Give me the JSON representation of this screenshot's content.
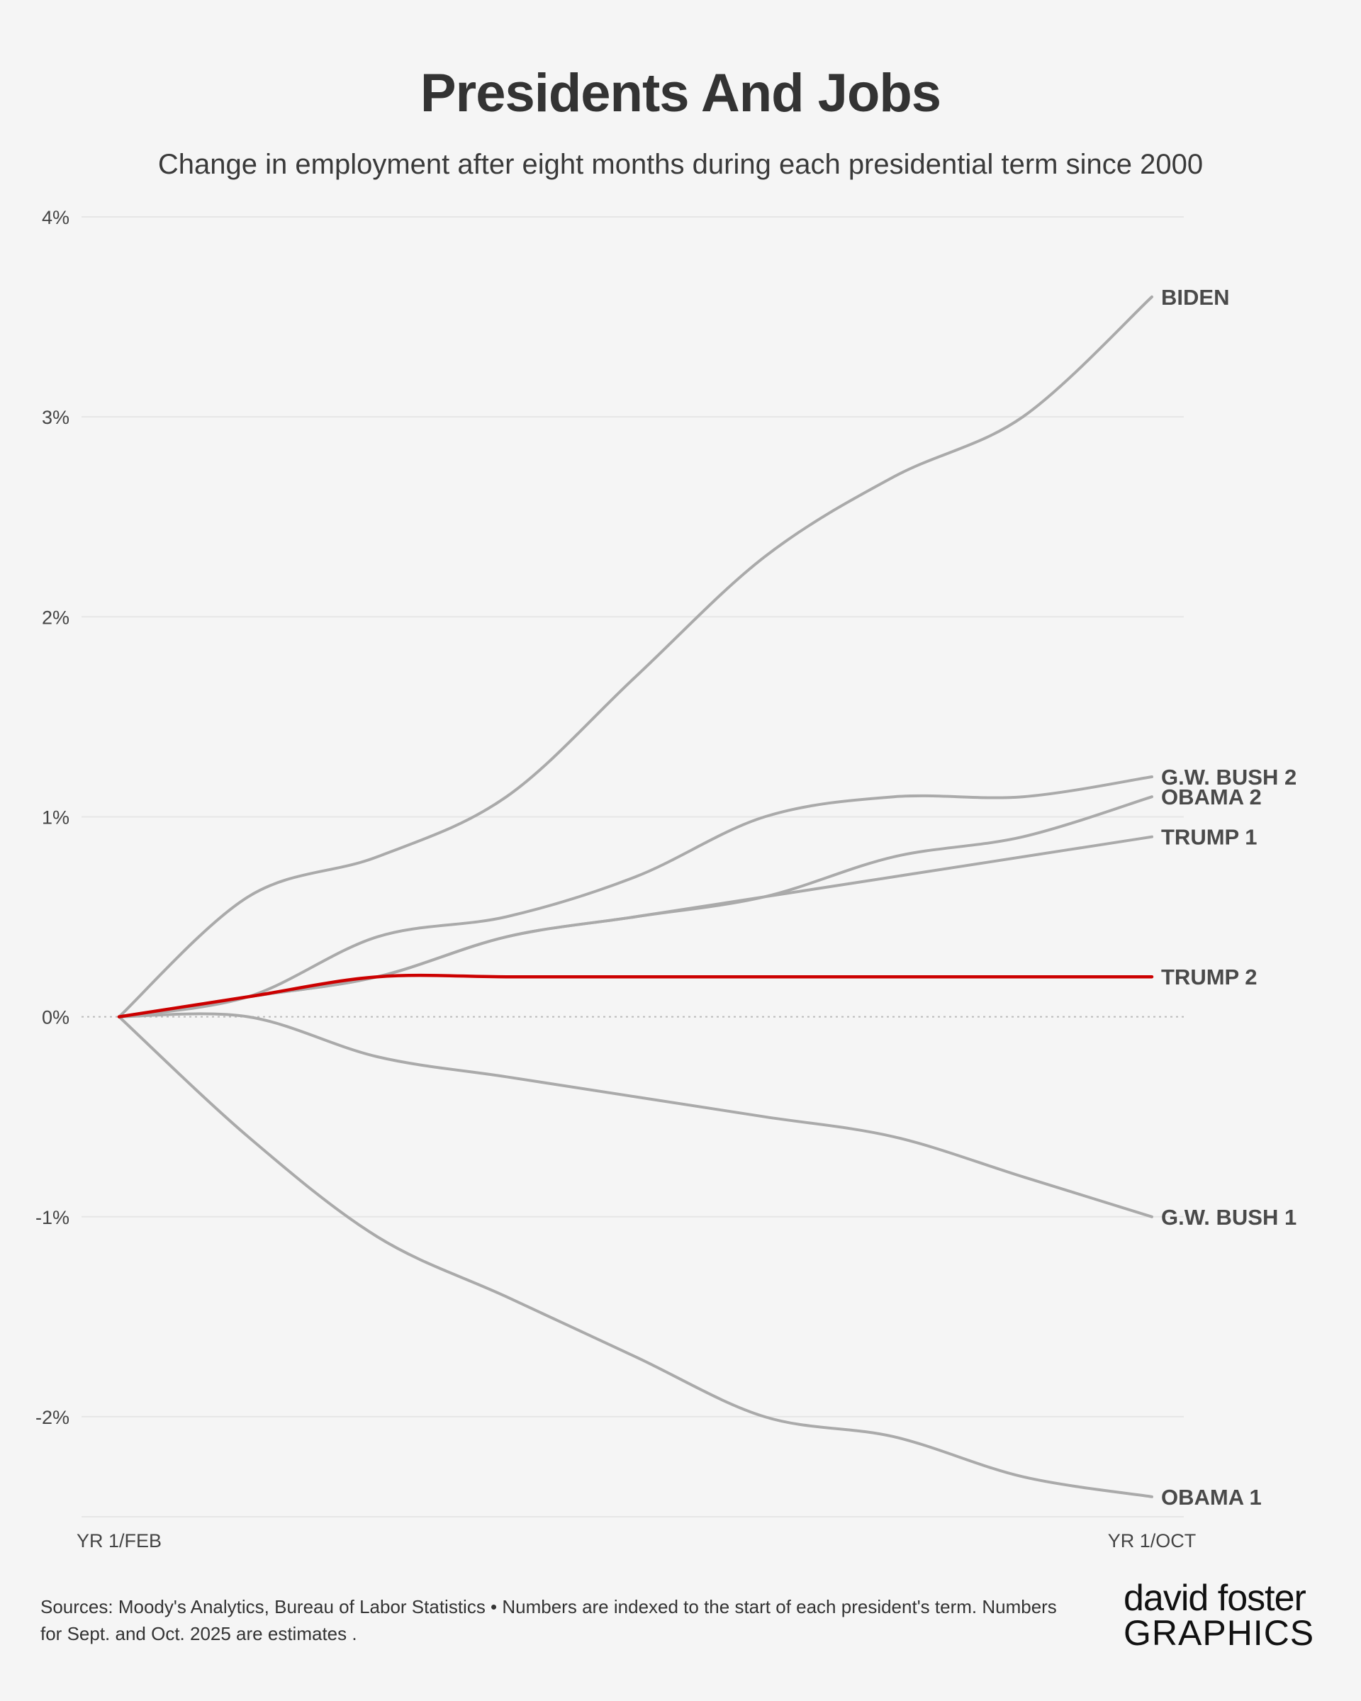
{
  "chart_data": {
    "type": "line",
    "title": "Presidents And Jobs",
    "subtitle": "Change in employment after eight months during each presidential term since 2000",
    "x": [
      0,
      1,
      2,
      3,
      4,
      5,
      6,
      7,
      8
    ],
    "x_tick_labels": [
      "YR 1/FEB",
      "YR 1/OCT"
    ],
    "y_tick_labels": [
      "4%",
      "3%",
      "2%",
      "1%",
      "0%",
      "-1%",
      "-2%"
    ],
    "ylim": [
      -2.5,
      4
    ],
    "y_ticks": [
      4,
      3,
      2,
      1,
      0,
      -1,
      -2
    ],
    "grid": true,
    "series": [
      {
        "name": "BIDEN",
        "values": [
          0,
          0.6,
          0.8,
          1.1,
          1.7,
          2.3,
          2.7,
          3.0,
          3.6
        ],
        "color": "#aaaaaa"
      },
      {
        "name": "G.W. BUSH 2",
        "values": [
          0,
          0.1,
          0.4,
          0.5,
          0.7,
          1.0,
          1.1,
          1.1,
          1.2
        ],
        "color": "#aaaaaa"
      },
      {
        "name": "OBAMA 2",
        "values": [
          0,
          0.1,
          0.2,
          0.4,
          0.5,
          0.6,
          0.8,
          0.9,
          1.1
        ],
        "color": "#aaaaaa"
      },
      {
        "name": "TRUMP 1",
        "values": [
          0,
          0.1,
          0.2,
          0.4,
          0.5,
          0.6,
          0.7,
          0.8,
          0.9
        ],
        "color": "#aaaaaa"
      },
      {
        "name": "G.W. BUSH 1",
        "values": [
          0,
          0,
          -0.2,
          -0.3,
          -0.4,
          -0.5,
          -0.6,
          -0.8,
          -1.0
        ],
        "color": "#aaaaaa"
      },
      {
        "name": "OBAMA 1",
        "values": [
          0,
          -0.6,
          -1.1,
          -1.4,
          -1.7,
          -2.0,
          -2.1,
          -2.3,
          -2.4
        ],
        "color": "#aaaaaa"
      },
      {
        "name": "TRUMP 2",
        "values": [
          0,
          0.1,
          0.2,
          0.2,
          0.2,
          0.2,
          0.2,
          0.2,
          0.2
        ],
        "color": "#cc0000"
      }
    ]
  },
  "footer": {
    "sources": "Sources: Moody's Analytics, Bureau of Labor Statistics • Numbers are indexed to the start of each president's term. Numbers for Sept. and Oct. 2025 are estimates ."
  },
  "brand": {
    "line1": "david foster",
    "line2": "GRAPHICS"
  }
}
